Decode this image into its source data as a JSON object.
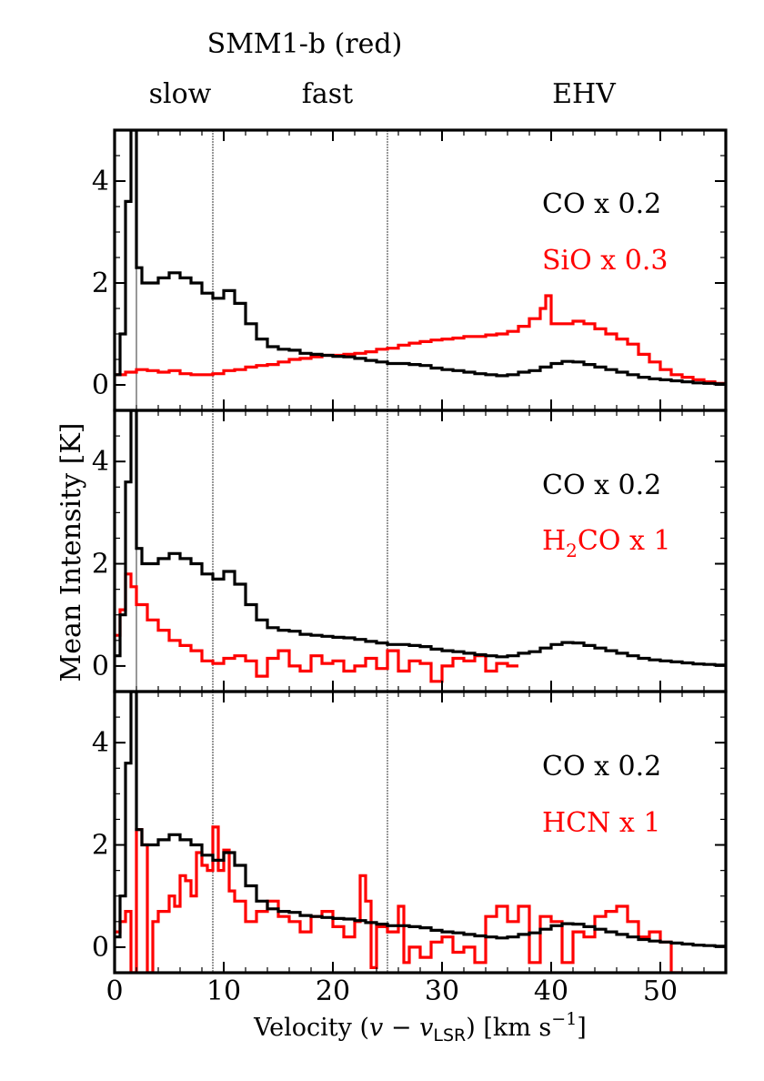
{
  "title": "SMM1-b  (red)",
  "regions": [
    {
      "label": "slow",
      "center": 6
    },
    {
      "label": "fast",
      "center": 19.5
    },
    {
      "label": "EHV",
      "center": 43
    }
  ],
  "dividers": [
    2,
    9,
    25
  ],
  "colors": {
    "co": "#000000",
    "tracer": "#ff0000",
    "axis": "#000000"
  },
  "chart_data": [
    {
      "type": "line",
      "panel": "top",
      "xlim": [
        0,
        56
      ],
      "ylim": [
        -0.5,
        5
      ],
      "yticks": [
        0,
        2,
        4
      ],
      "series": [
        {
          "name": "CO x 0.2",
          "color": "#000000",
          "x": [
            0,
            0.5,
            1,
            1.5,
            2,
            2.5,
            3,
            4,
            5,
            6,
            7,
            8,
            9,
            10,
            11,
            12,
            13,
            14,
            15,
            16,
            17,
            18,
            19,
            20,
            21,
            22,
            23,
            24,
            25,
            26,
            27,
            28,
            29,
            30,
            31,
            32,
            33,
            34,
            35,
            36,
            37,
            38,
            39,
            40,
            41,
            42,
            43,
            44,
            45,
            46,
            47,
            48,
            49,
            50,
            51,
            52,
            53,
            54,
            55,
            56
          ],
          "y": [
            0.2,
            1.0,
            3.6,
            5.0,
            2.3,
            2.0,
            2.0,
            2.1,
            2.2,
            2.1,
            2.0,
            1.8,
            1.7,
            1.85,
            1.6,
            1.2,
            0.9,
            0.75,
            0.7,
            0.68,
            0.62,
            0.6,
            0.58,
            0.56,
            0.55,
            0.52,
            0.48,
            0.45,
            0.42,
            0.42,
            0.4,
            0.38,
            0.33,
            0.3,
            0.28,
            0.25,
            0.22,
            0.2,
            0.18,
            0.2,
            0.25,
            0.28,
            0.35,
            0.42,
            0.46,
            0.45,
            0.4,
            0.35,
            0.3,
            0.25,
            0.2,
            0.15,
            0.12,
            0.1,
            0.08,
            0.06,
            0.04,
            0.03,
            0.02,
            0.01
          ]
        },
        {
          "name": "SiO x 0.3",
          "color": "#ff0000",
          "x": [
            0,
            1,
            2,
            3,
            4,
            5,
            6,
            7,
            8,
            9,
            10,
            11,
            12,
            13,
            14,
            15,
            16,
            17,
            18,
            19,
            20,
            21,
            22,
            23,
            24,
            25,
            26,
            27,
            28,
            29,
            30,
            31,
            32,
            33,
            34,
            35,
            36,
            37,
            38,
            39,
            39.5,
            40,
            41,
            42,
            43,
            44,
            45,
            46,
            47,
            48,
            49,
            50,
            51,
            52,
            53,
            54,
            55,
            56
          ],
          "y": [
            0.2,
            0.25,
            0.3,
            0.28,
            0.25,
            0.28,
            0.22,
            0.2,
            0.2,
            0.22,
            0.28,
            0.3,
            0.35,
            0.38,
            0.4,
            0.45,
            0.5,
            0.52,
            0.55,
            0.58,
            0.58,
            0.6,
            0.62,
            0.65,
            0.7,
            0.72,
            0.78,
            0.82,
            0.85,
            0.88,
            0.9,
            0.92,
            0.95,
            0.95,
            0.98,
            1.0,
            1.05,
            1.15,
            1.3,
            1.5,
            1.75,
            1.2,
            1.2,
            1.25,
            1.2,
            1.1,
            1.0,
            0.9,
            0.8,
            0.6,
            0.45,
            0.3,
            0.2,
            0.15,
            0.1,
            0.06,
            0.03,
            0.02
          ]
        }
      ]
    },
    {
      "type": "line",
      "panel": "middle",
      "xlim": [
        0,
        56
      ],
      "ylim": [
        -0.5,
        5
      ],
      "yticks": [
        0,
        2,
        4
      ],
      "series": [
        {
          "name": "CO x 0.2",
          "color": "#000000",
          "x": [
            0,
            0.5,
            1,
            1.5,
            2,
            2.5,
            3,
            4,
            5,
            6,
            7,
            8,
            9,
            10,
            11,
            12,
            13,
            14,
            15,
            16,
            17,
            18,
            19,
            20,
            21,
            22,
            23,
            24,
            25,
            26,
            27,
            28,
            29,
            30,
            31,
            32,
            33,
            34,
            35,
            36,
            37,
            38,
            39,
            40,
            41,
            42,
            43,
            44,
            45,
            46,
            47,
            48,
            49,
            50,
            51,
            52,
            53,
            54,
            55,
            56
          ],
          "y": [
            0.2,
            1.0,
            3.6,
            5.0,
            2.3,
            2.0,
            2.0,
            2.1,
            2.2,
            2.1,
            2.0,
            1.8,
            1.7,
            1.85,
            1.6,
            1.2,
            0.9,
            0.75,
            0.7,
            0.68,
            0.62,
            0.6,
            0.58,
            0.56,
            0.55,
            0.52,
            0.48,
            0.45,
            0.42,
            0.42,
            0.4,
            0.38,
            0.33,
            0.3,
            0.28,
            0.25,
            0.22,
            0.2,
            0.18,
            0.2,
            0.25,
            0.28,
            0.35,
            0.42,
            0.46,
            0.45,
            0.4,
            0.35,
            0.3,
            0.25,
            0.2,
            0.15,
            0.12,
            0.1,
            0.08,
            0.06,
            0.04,
            0.03,
            0.02,
            0.01
          ]
        },
        {
          "name": "H2CO x 1",
          "color": "#ff0000",
          "x": [
            0,
            0.5,
            1,
            1.5,
            2,
            3,
            4,
            5,
            6,
            7,
            8,
            9,
            10,
            11,
            12,
            13,
            14,
            15,
            16,
            17,
            18,
            19,
            20,
            21,
            22,
            23,
            24,
            25,
            26,
            27,
            28,
            29,
            30,
            31,
            32,
            33,
            34,
            35,
            36
          ],
          "y": [
            0.6,
            1.1,
            1.8,
            1.55,
            1.2,
            0.9,
            0.7,
            0.5,
            0.4,
            0.3,
            0.1,
            0.05,
            0.15,
            0.2,
            0.1,
            -0.2,
            0.15,
            0.3,
            0.0,
            -0.1,
            0.2,
            0.05,
            0.1,
            -0.1,
            0.0,
            0.15,
            -0.05,
            0.3,
            -0.1,
            0.1,
            0.05,
            -0.3,
            0.0,
            0.15,
            0.1,
            0.2,
            -0.1,
            0.05,
            0.0
          ]
        }
      ]
    },
    {
      "type": "line",
      "panel": "bottom",
      "xlim": [
        0,
        56
      ],
      "ylim": [
        -0.5,
        5
      ],
      "xticks": [
        0,
        10,
        20,
        30,
        40,
        50
      ],
      "yticks": [
        0,
        2,
        4
      ],
      "xlabel": "Velocity",
      "ylabel": "Mean Intensity [K]",
      "series": [
        {
          "name": "CO x 0.2",
          "color": "#000000",
          "x": [
            0,
            0.5,
            1,
            1.5,
            2,
            2.5,
            3,
            4,
            5,
            6,
            7,
            8,
            9,
            10,
            11,
            12,
            13,
            14,
            15,
            16,
            17,
            18,
            19,
            20,
            21,
            22,
            23,
            24,
            25,
            26,
            27,
            28,
            29,
            30,
            31,
            32,
            33,
            34,
            35,
            36,
            37,
            38,
            39,
            40,
            41,
            42,
            43,
            44,
            45,
            46,
            47,
            48,
            49,
            50,
            51,
            52,
            53,
            54,
            55,
            56
          ],
          "y": [
            0.2,
            1.0,
            3.6,
            5.0,
            2.3,
            2.0,
            2.0,
            2.1,
            2.2,
            2.1,
            2.0,
            1.8,
            1.7,
            1.85,
            1.6,
            1.2,
            0.9,
            0.75,
            0.7,
            0.68,
            0.62,
            0.6,
            0.58,
            0.56,
            0.55,
            0.52,
            0.48,
            0.45,
            0.42,
            0.42,
            0.4,
            0.38,
            0.33,
            0.3,
            0.28,
            0.25,
            0.22,
            0.2,
            0.18,
            0.2,
            0.25,
            0.28,
            0.35,
            0.42,
            0.46,
            0.45,
            0.4,
            0.35,
            0.3,
            0.25,
            0.2,
            0.15,
            0.12,
            0.1,
            0.08,
            0.06,
            0.04,
            0.03,
            0.02,
            0.01
          ]
        },
        {
          "name": "HCN x 1",
          "color": "#ff0000",
          "x": [
            0,
            0.5,
            1,
            1.5,
            2,
            2.5,
            3,
            3.5,
            4,
            5,
            5.5,
            6,
            6.5,
            7,
            7.5,
            8,
            8.5,
            9,
            9.5,
            10,
            10.5,
            11,
            12,
            13,
            14,
            15,
            16,
            17,
            18,
            19,
            20,
            21,
            22,
            22.5,
            23,
            23.5,
            24,
            25,
            26,
            26.5,
            27,
            28,
            29,
            30,
            31,
            32,
            33,
            34,
            35,
            36,
            37,
            38,
            39,
            40,
            41,
            42,
            43,
            44,
            45,
            46,
            47,
            48,
            49,
            50,
            51
          ],
          "y": [
            0.3,
            0.5,
            0.7,
            -0.5,
            2.3,
            2.0,
            -0.5,
            0.5,
            0.7,
            1.0,
            0.8,
            1.4,
            1.3,
            1.0,
            1.85,
            1.6,
            1.5,
            2.35,
            1.5,
            1.9,
            1.1,
            0.9,
            0.5,
            0.7,
            0.9,
            0.6,
            0.5,
            0.3,
            0.6,
            0.7,
            0.4,
            0.2,
            0.5,
            1.4,
            0.9,
            -0.4,
            0.4,
            0.3,
            0.8,
            -0.3,
            0.0,
            -0.2,
            0.1,
            0.2,
            -0.1,
            0.0,
            -0.3,
            0.6,
            0.8,
            0.5,
            0.8,
            -0.3,
            0.6,
            0.5,
            -0.3,
            0.3,
            0.2,
            0.6,
            0.7,
            0.8,
            0.5,
            0.2,
            0.3,
            0.1,
            -0.5
          ]
        }
      ]
    }
  ],
  "labels": {
    "panel1_line1": "CO x 0.2",
    "panel1_line2": "SiO x 0.3",
    "panel2_line1": "CO x 0.2",
    "panel2_line2_pre": "H",
    "panel2_line2_sub": "2",
    "panel2_line2_post": "CO x 1",
    "panel3_line1": "CO x 0.2",
    "panel3_line2": "HCN x 1",
    "ylabel": "Mean Intensity [K]",
    "xlabel_pre": "Velocity (",
    "xlabel_v": "v",
    "xlabel_minus": " − ",
    "xlabel_v2": "v",
    "xlabel_sub": "LSR",
    "xlabel_mid": ") [km s",
    "xlabel_sup": "−1",
    "xlabel_post": "]"
  }
}
